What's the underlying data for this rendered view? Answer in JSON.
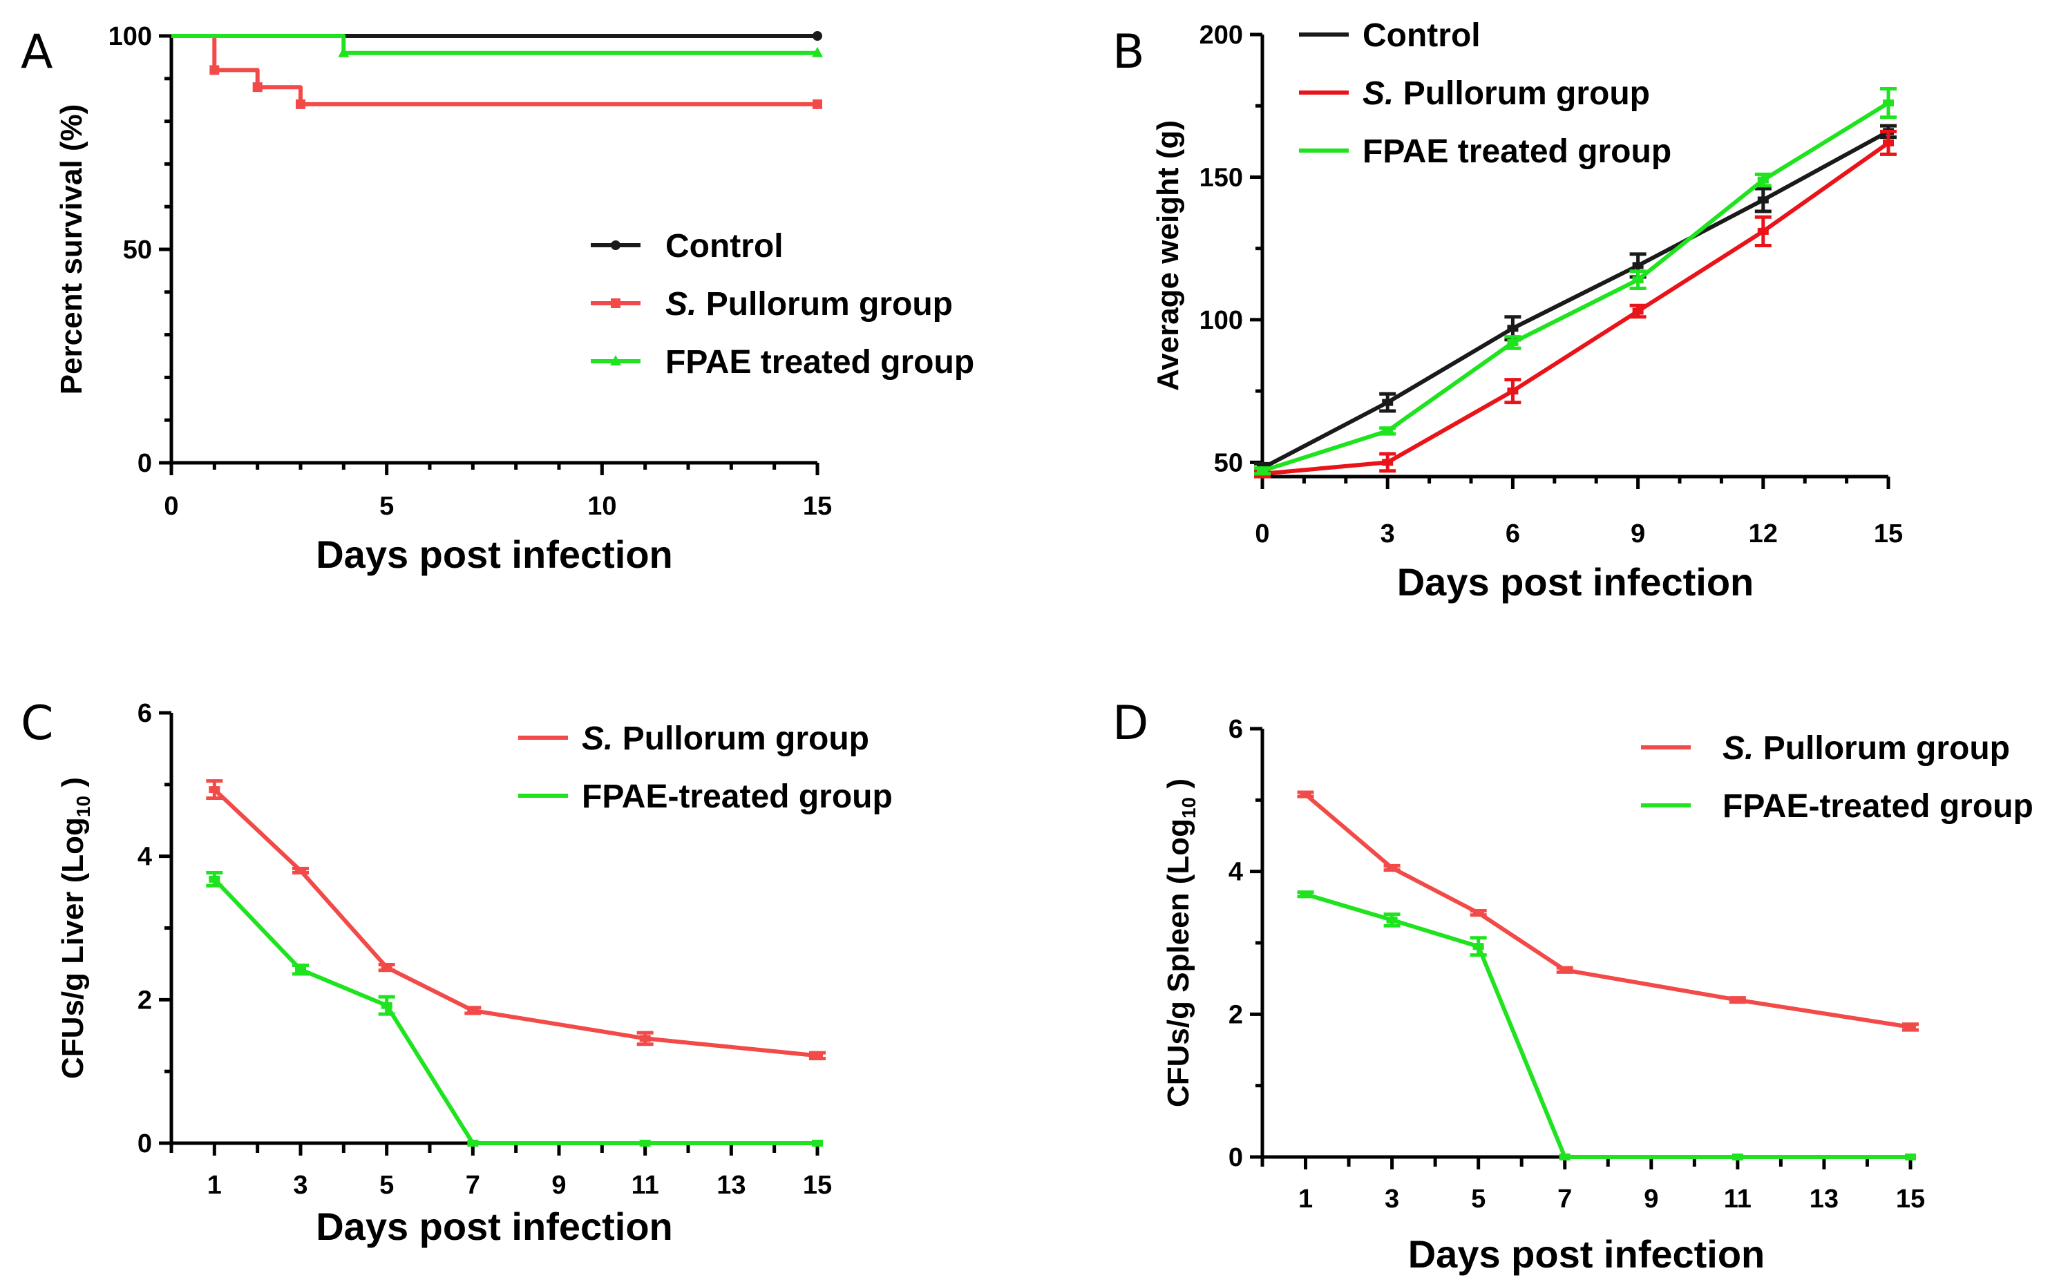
{
  "colors": {
    "control": "#1a1a1a",
    "pullorum": "#f24a48",
    "fpae": "#1ee31e",
    "pullorum_b": "#e8141a"
  },
  "chart_data": [
    {
      "panel": "A",
      "type": "line",
      "subtype": "survival-step",
      "xlabel": "Days post infection",
      "ylabel": "Percent survival (%)",
      "xlim": [
        0,
        15
      ],
      "ylim": [
        0,
        100
      ],
      "xticks": [
        "0",
        "5",
        "10",
        "15"
      ],
      "yticks": [
        "0",
        "50",
        "100"
      ],
      "legend_position": "center-right",
      "series": [
        {
          "name": "Control",
          "italic_prefix": "",
          "rest": "Control",
          "color": "#1a1a1a",
          "marker": "circle",
          "points": [
            [
              0,
              100
            ],
            [
              15,
              100
            ]
          ],
          "markers": [
            [
              15,
              100
            ]
          ]
        },
        {
          "name": "S. Pullorum group",
          "italic_prefix": "S.",
          "rest": " Pullorum group",
          "color": "#f24a48",
          "marker": "square",
          "points": [
            [
              0,
              100
            ],
            [
              1,
              100
            ],
            [
              1,
              92
            ],
            [
              2,
              92
            ],
            [
              2,
              88
            ],
            [
              3,
              88
            ],
            [
              3,
              84
            ],
            [
              15,
              84
            ]
          ],
          "markers": [
            [
              1,
              92
            ],
            [
              2,
              88
            ],
            [
              3,
              84
            ],
            [
              15,
              84
            ]
          ]
        },
        {
          "name": "FPAE treated group",
          "italic_prefix": "",
          "rest": "FPAE treated group",
          "color": "#1ee31e",
          "marker": "triangle",
          "points": [
            [
              0,
              100
            ],
            [
              4,
              100
            ],
            [
              4,
              96
            ],
            [
              15,
              96
            ]
          ],
          "markers": [
            [
              4,
              96
            ],
            [
              15,
              96
            ]
          ]
        }
      ]
    },
    {
      "panel": "B",
      "type": "line",
      "xlabel": "Days post infection",
      "ylabel": "Average weight (g)",
      "xlim": [
        0,
        15
      ],
      "ylim": [
        45,
        200
      ],
      "xticks": [
        "0",
        "3",
        "6",
        "9",
        "12",
        "15"
      ],
      "yticks": [
        "50",
        "100",
        "150",
        "200"
      ],
      "legend_position": "top-left",
      "x": [
        0,
        3,
        6,
        9,
        12,
        15
      ],
      "series": [
        {
          "name": "Control",
          "italic_prefix": "",
          "rest": "Control",
          "color": "#1a1a1a",
          "values": [
            48,
            71,
            97,
            119,
            142,
            166
          ],
          "err": [
            1.5,
            3,
            4,
            4,
            4,
            2
          ]
        },
        {
          "name": "S. Pullorum group",
          "italic_prefix": "S.",
          "rest": " Pullorum group",
          "color": "#e8141a",
          "values": [
            46,
            50,
            75,
            103,
            131,
            162
          ],
          "err": [
            1,
            3,
            4,
            2,
            5,
            4
          ]
        },
        {
          "name": "FPAE treated group",
          "italic_prefix": "",
          "rest": "FPAE treated group",
          "color": "#1ee31e",
          "values": [
            47,
            61,
            92,
            114,
            149,
            176
          ],
          "err": [
            1,
            1,
            2,
            3,
            2,
            5
          ]
        }
      ]
    },
    {
      "panel": "C",
      "type": "line",
      "xlabel": "Days post infection",
      "ylabel": "CFUs/g Liver (Log",
      "ylabel_sub": "10",
      "ylabel_end": " )",
      "xlim": [
        0,
        15
      ],
      "ylim": [
        0,
        6
      ],
      "xticks": [
        "1",
        "3",
        "5",
        "7",
        "9",
        "11",
        "13",
        "15"
      ],
      "yticks": [
        "0",
        "2",
        "4",
        "6"
      ],
      "legend_position": "top-right",
      "x": [
        1,
        3,
        5,
        7,
        11,
        15
      ],
      "series": [
        {
          "name": "S. Pullorum group",
          "italic_prefix": "S.",
          "rest": " Pullorum group",
          "color": "#f24a48",
          "values": [
            4.93,
            3.8,
            2.45,
            1.85,
            1.46,
            1.22
          ],
          "err": [
            0.12,
            0.03,
            0.04,
            0.04,
            0.08,
            0.04
          ]
        },
        {
          "name": "FPAE-treated group",
          "italic_prefix": "",
          "rest": "FPAE-treated group",
          "color": "#1ee31e",
          "values": [
            3.68,
            2.42,
            1.92,
            0,
            0,
            0
          ],
          "err": [
            0.09,
            0.06,
            0.12,
            0,
            0,
            0
          ]
        }
      ]
    },
    {
      "panel": "D",
      "type": "line",
      "xlabel": "Days post infection",
      "ylabel": "CFUs/g Spleen (Log",
      "ylabel_sub": "10",
      "ylabel_end": " )",
      "xlim": [
        0,
        15
      ],
      "ylim": [
        0,
        6
      ],
      "xticks": [
        "1",
        "3",
        "5",
        "7",
        "9",
        "11",
        "13",
        "15"
      ],
      "yticks": [
        "0",
        "2",
        "4",
        "6"
      ],
      "legend_position": "top-right",
      "x": [
        1,
        3,
        5,
        7,
        11,
        15
      ],
      "series": [
        {
          "name": "S. Pullorum group",
          "italic_prefix": "S.",
          "rest": " Pullorum group",
          "color": "#f24a48",
          "values": [
            5.08,
            4.05,
            3.42,
            2.62,
            2.2,
            1.82
          ],
          "err": [
            0.03,
            0.03,
            0.03,
            0.03,
            0.03,
            0.04
          ]
        },
        {
          "name": "FPAE-treated group",
          "italic_prefix": "",
          "rest": "FPAE-treated group",
          "color": "#1ee31e",
          "values": [
            3.68,
            3.32,
            2.95,
            0,
            0,
            0
          ],
          "err": [
            0.03,
            0.08,
            0.12,
            0,
            0,
            0
          ]
        }
      ]
    }
  ]
}
